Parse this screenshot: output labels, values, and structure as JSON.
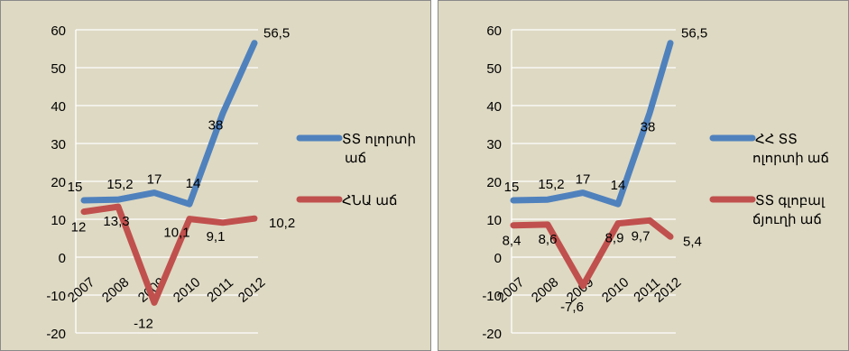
{
  "charts": [
    {
      "chart_data": {
        "type": "line",
        "categories": [
          "2007",
          "2008",
          "2009",
          "2010",
          "2011",
          "2012"
        ],
        "ylim": [
          -20,
          60
        ],
        "yticks": [
          "60",
          "50",
          "40",
          "30",
          "20",
          "10",
          "0",
          "-10",
          "-20"
        ],
        "grid": true,
        "legend": "right",
        "background": "#ded9c3",
        "series": [
          {
            "name_lines": [
              "ՏՏ ոլորտի",
              "աճ"
            ],
            "color": "#4f81bd",
            "values": [
              15,
              15.2,
              17,
              14,
              38,
              56.5
            ],
            "labels": [
              "15",
              "15,2",
              "17",
              "14",
              "38",
              "56,5"
            ]
          },
          {
            "name_lines": [
              "ՀՆԱ աճ"
            ],
            "color": "#c0504d",
            "values": [
              12,
              13.3,
              -12,
              10.1,
              9.1,
              10.2
            ],
            "labels": [
              "12",
              "13,3",
              "-12",
              "10,1",
              "9,1",
              "10,2"
            ]
          }
        ]
      }
    },
    {
      "chart_data": {
        "type": "line",
        "categories": [
          "2007",
          "2008",
          "2009",
          "2010",
          "2011",
          "2012"
        ],
        "ylim": [
          -20,
          60
        ],
        "yticks": [
          "60",
          "50",
          "40",
          "30",
          "20",
          "10",
          "0",
          "-10",
          "-20"
        ],
        "grid": true,
        "legend": "right",
        "background": "#ded9c3",
        "series": [
          {
            "name_lines": [
              "ՀՀ ՏՏ",
              "ոլորտի աճ"
            ],
            "color": "#4f81bd",
            "values": [
              15,
              15.2,
              17,
              14,
              38,
              56.5
            ],
            "labels": [
              "15",
              "15,2",
              "17",
              "14",
              "38",
              "56,5"
            ]
          },
          {
            "name_lines": [
              "ՏՏ գլոբալ",
              "ճյուղի աճ"
            ],
            "color": "#c0504d",
            "values": [
              8.4,
              8.6,
              -7.6,
              8.9,
              9.7,
              5.4
            ],
            "labels": [
              "8,4",
              "8,6",
              "-7,6",
              "8,9",
              "9,7",
              "5,4"
            ]
          }
        ]
      }
    }
  ]
}
